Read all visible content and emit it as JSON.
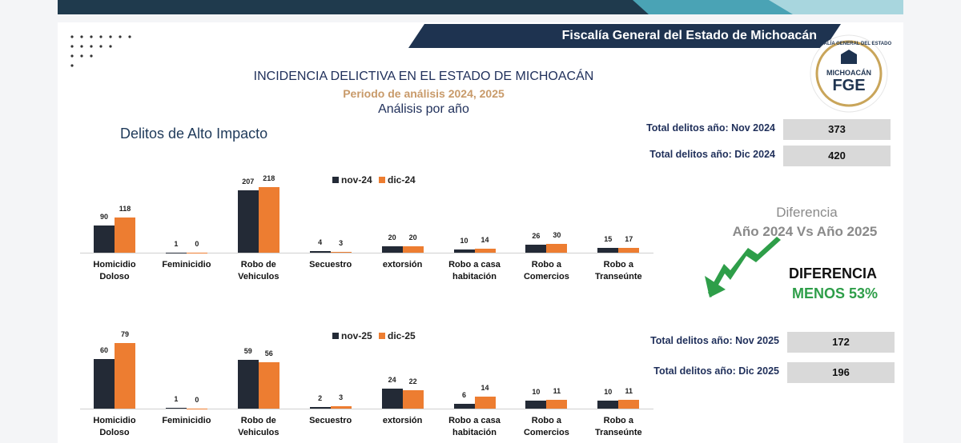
{
  "header": {
    "banner": "Fiscalía General del Estado de Michoacán",
    "title": "INCIDENCIA DELICTIVA EN EL ESTADO DE MICHOACÁN",
    "period": "Periodo de análisis 2024, 2025",
    "subtitle": "Análisis por año",
    "section": "Delitos de Alto Impacto"
  },
  "logo": {
    "ring": "FISCALÍA GENERAL DEL ESTADO",
    "state": "MICHOACÁN",
    "acronym": "FGE"
  },
  "totals": [
    {
      "label": "Total delitos año: Nov 2024",
      "value": 373
    },
    {
      "label": "Total delitos año: Dic 2024",
      "value": 420
    },
    {
      "label": "Total delitos año: Nov 2025",
      "value": 172
    },
    {
      "label": "Total delitos año: Dic 2025",
      "value": 196
    }
  ],
  "comparison": {
    "title": "Diferencia",
    "subtitle": "Año 2024 Vs Año 2025",
    "label": "DIFERENCIA",
    "result": "MENOS 53%"
  },
  "chart_data": [
    {
      "type": "bar",
      "categories": [
        "Homicidio Doloso",
        "Feminicidio",
        "Robo de Vehiculos",
        "Secuestro",
        "extorsión",
        "Robo a casa habitación",
        "Robo a Comercios",
        "Robo a Transeúnte"
      ],
      "series": [
        {
          "name": "nov-24",
          "color": "#232a36",
          "values": [
            90,
            1,
            207,
            4,
            20,
            10,
            26,
            15
          ]
        },
        {
          "name": "dic-24",
          "color": "#ed7d31",
          "values": [
            118,
            0,
            218,
            3,
            20,
            14,
            30,
            17
          ]
        }
      ]
    },
    {
      "type": "bar",
      "categories": [
        "Homicidio Doloso",
        "Feminicidio",
        "Robo de Vehiculos",
        "Secuestro",
        "extorsión",
        "Robo a casa habitación",
        "Robo a Comercios",
        "Robo a Transeúnte"
      ],
      "series": [
        {
          "name": "nov-25",
          "color": "#232a36",
          "values": [
            60,
            1,
            59,
            2,
            24,
            6,
            10,
            10
          ]
        },
        {
          "name": "dic-25",
          "color": "#ed7d31",
          "values": [
            79,
            0,
            56,
            3,
            22,
            14,
            11,
            11
          ]
        }
      ]
    }
  ]
}
